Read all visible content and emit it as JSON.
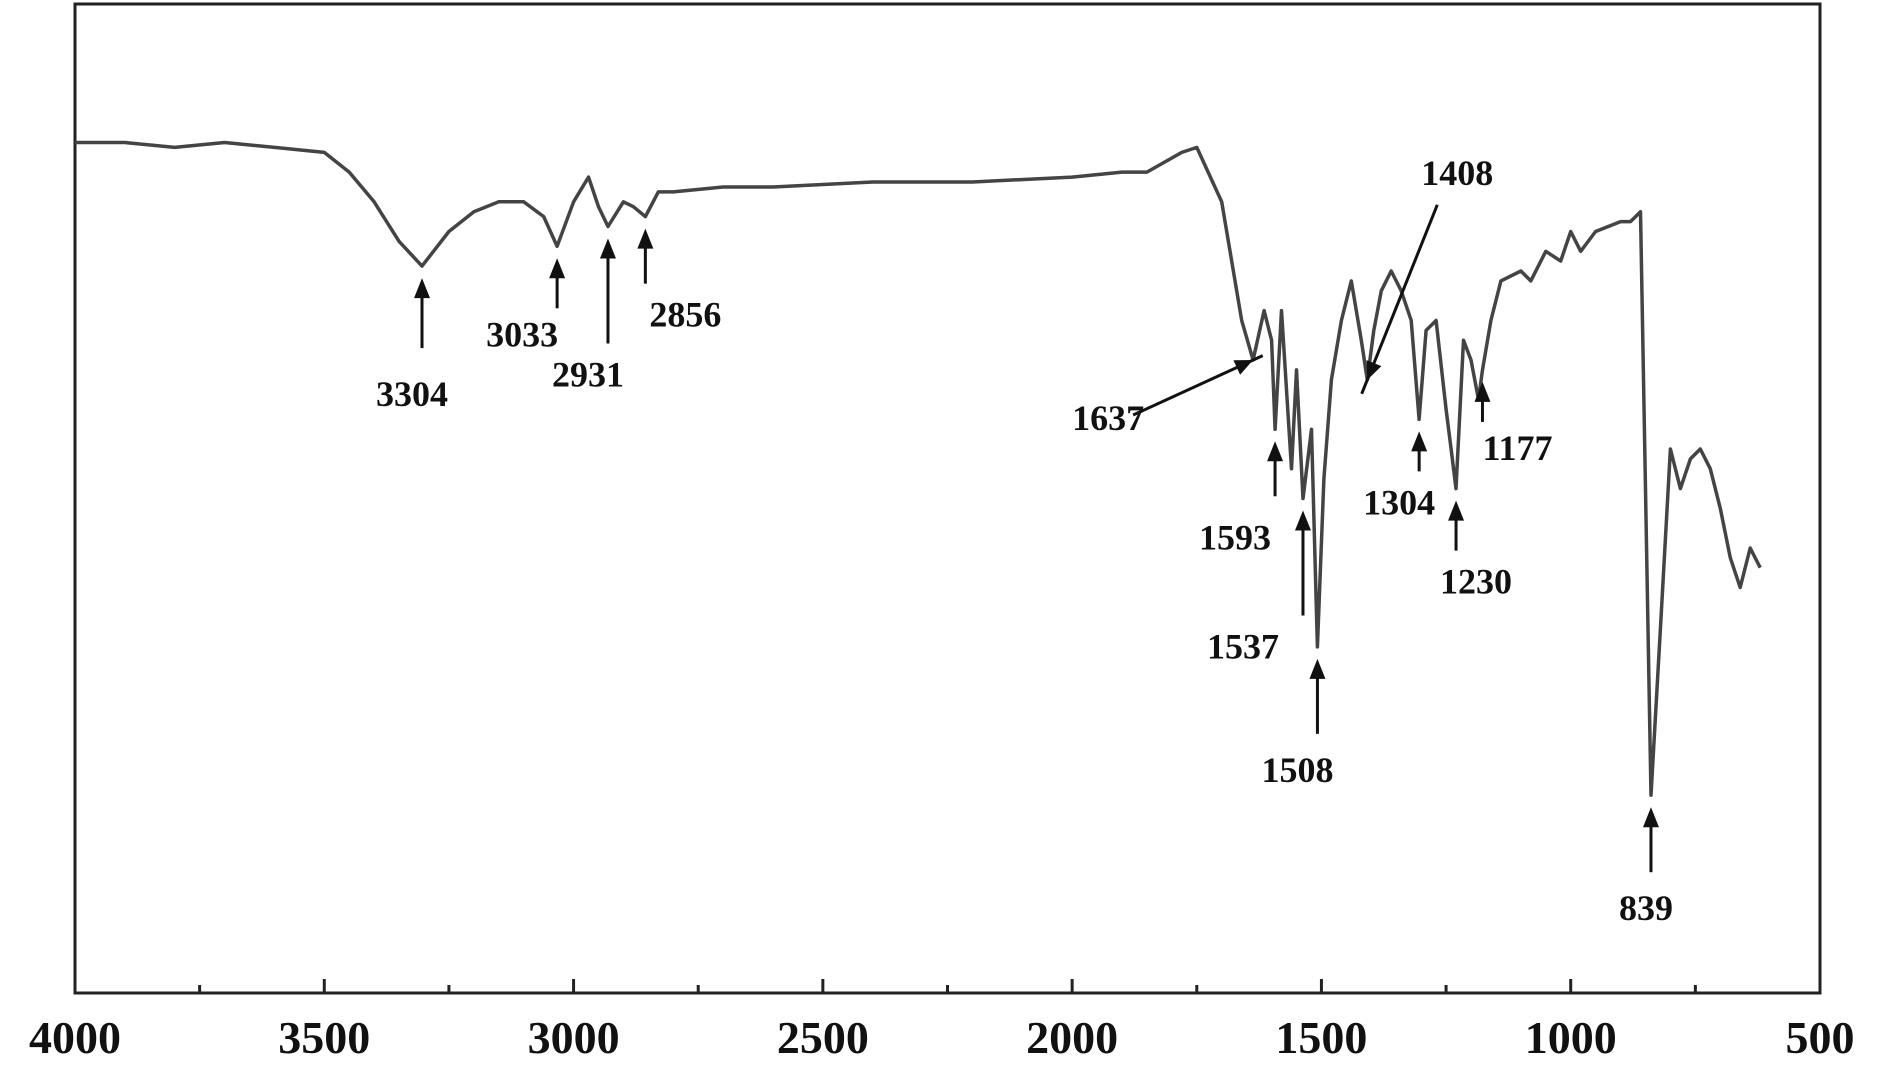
{
  "chart_data": {
    "type": "line",
    "title": "",
    "xlabel": "",
    "ylabel": "",
    "xlim": [
      4000,
      500
    ],
    "x_reversed": true,
    "x_ticks": [
      4000,
      3500,
      3000,
      2500,
      2000,
      1500,
      1000,
      500
    ],
    "x_tick_labels": [
      "4000",
      "3500",
      "3000",
      "2500",
      "2000",
      "1500",
      "1000",
      "500"
    ],
    "y_axis_shown": false,
    "ylim": [
      0,
      100
    ],
    "grid": false,
    "legend": "none",
    "series": [
      {
        "x": [
          4000,
          3900,
          3800,
          3700,
          3600,
          3500,
          3450,
          3400,
          3350,
          3304,
          3250,
          3200,
          3150,
          3100,
          3060,
          3033,
          3000,
          2970,
          2950,
          2931,
          2900,
          2880,
          2856,
          2830,
          2800,
          2700,
          2600,
          2400,
          2200,
          2000,
          1900,
          1850,
          1780,
          1750,
          1700,
          1660,
          1637,
          1615,
          1600,
          1593,
          1580,
          1560,
          1550,
          1537,
          1520,
          1508,
          1495,
          1480,
          1460,
          1440,
          1420,
          1408,
          1395,
          1380,
          1360,
          1340,
          1320,
          1304,
          1290,
          1270,
          1250,
          1240,
          1230,
          1215,
          1200,
          1185,
          1177,
          1160,
          1140,
          1100,
          1080,
          1050,
          1020,
          1000,
          980,
          950,
          900,
          880,
          860,
          839,
          820,
          800,
          780,
          760,
          740,
          720,
          700,
          680,
          660,
          640,
          620
        ],
        "y": [
          86,
          86,
          85.5,
          86,
          85.5,
          85,
          83,
          80,
          76,
          73.5,
          77,
          79,
          80,
          80,
          78.5,
          75.5,
          80,
          82.5,
          79.5,
          77.5,
          80,
          79.5,
          78.5,
          81,
          81,
          81.5,
          81.5,
          82,
          82,
          82.5,
          83,
          83,
          85,
          85.5,
          80,
          68,
          64,
          69,
          66,
          57,
          69,
          53,
          63,
          50,
          57,
          35,
          52,
          62,
          68,
          72,
          66,
          62,
          67,
          71,
          73,
          71,
          68,
          58,
          67,
          68,
          59,
          55,
          51,
          66,
          64,
          60,
          63,
          68,
          72,
          73,
          72,
          75,
          74,
          77,
          75,
          77,
          78,
          78,
          79,
          20,
          37,
          55,
          51,
          54,
          55,
          53,
          49,
          44,
          41,
          45,
          43
        ]
      }
    ],
    "annotations": [
      {
        "text": "3304",
        "x": 3304,
        "y": 73.5
      },
      {
        "text": "3033",
        "x": 3033,
        "y": 75.5
      },
      {
        "text": "2931",
        "x": 2931,
        "y": 77.5
      },
      {
        "text": "2856",
        "x": 2856,
        "y": 78.5
      },
      {
        "text": "1637",
        "x": 1637,
        "y": 64
      },
      {
        "text": "1593",
        "x": 1593,
        "y": 57
      },
      {
        "text": "1537",
        "x": 1537,
        "y": 50
      },
      {
        "text": "1508",
        "x": 1508,
        "y": 35
      },
      {
        "text": "1408",
        "x": 1408,
        "y": 62
      },
      {
        "text": "1304",
        "x": 1304,
        "y": 58
      },
      {
        "text": "1230",
        "x": 1230,
        "y": 51
      },
      {
        "text": "1177",
        "x": 1177,
        "y": 63
      },
      {
        "text": "839",
        "x": 839,
        "y": 20
      }
    ],
    "colors": {
      "line": "#444444",
      "axes": "#222222",
      "text": "#111111"
    }
  }
}
